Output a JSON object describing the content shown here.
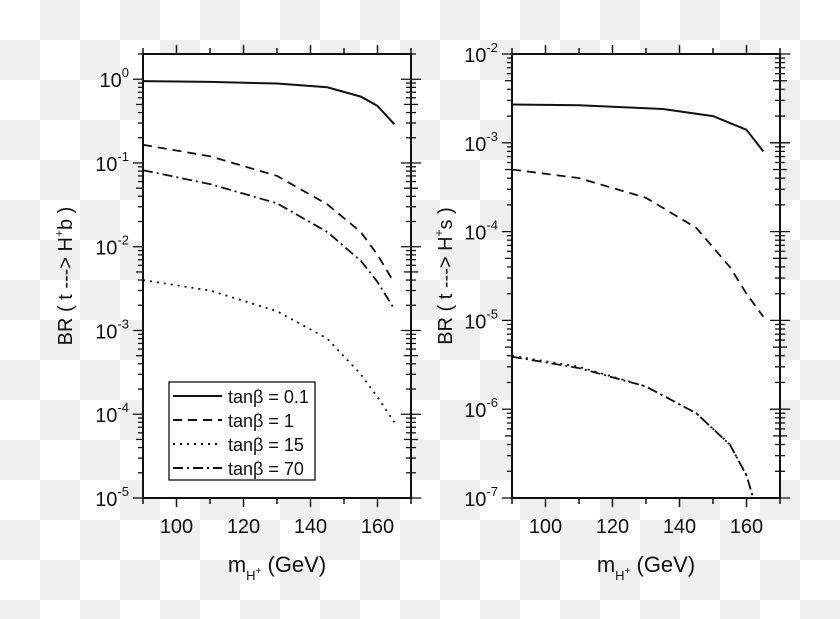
{
  "chart_data": [
    {
      "type": "line",
      "panel": "left",
      "xlabel": {
        "main": "m",
        "sub": "H",
        "subsup": "+",
        "post": " (GeV)"
      },
      "ylabel": {
        "pre": "BR ( t ---> H",
        "sup": "+",
        "post": "b )"
      },
      "xlim": [
        90,
        170
      ],
      "ylim": [
        1e-05,
        2
      ],
      "yscale": "log",
      "x_ticks": [
        100,
        120,
        140,
        160
      ],
      "y_ticks": [
        {
          "base": "10",
          "exp": "0",
          "value": 1
        },
        {
          "base": "10",
          "exp": "-1",
          "value": 0.1
        },
        {
          "base": "10",
          "exp": "-2",
          "value": 0.01
        },
        {
          "base": "10",
          "exp": "-3",
          "value": 0.001
        },
        {
          "base": "10",
          "exp": "-4",
          "value": 0.0001
        },
        {
          "base": "10",
          "exp": "-5",
          "value": 1e-05
        }
      ],
      "legend_placement": "bottom-left",
      "series": [
        {
          "name": "tanβ = 0.1",
          "style": "solid",
          "x": [
            90,
            110,
            130,
            145,
            155,
            160,
            165
          ],
          "y": [
            0.95,
            0.93,
            0.89,
            0.8,
            0.62,
            0.48,
            0.29
          ]
        },
        {
          "name": "tanβ = 1",
          "style": "dashed",
          "x": [
            90,
            110,
            130,
            145,
            155,
            160,
            165
          ],
          "y": [
            0.165,
            0.12,
            0.07,
            0.032,
            0.015,
            0.008,
            0.0037
          ]
        },
        {
          "name": "tanβ = 15",
          "style": "dotted",
          "x": [
            90,
            110,
            130,
            145,
            155,
            160,
            165
          ],
          "y": [
            0.004,
            0.003,
            0.0017,
            0.0008,
            0.0003,
            0.00016,
            8e-05
          ]
        },
        {
          "name": "tanβ = 70",
          "style": "dashdot",
          "x": [
            90,
            110,
            130,
            145,
            155,
            160,
            165
          ],
          "y": [
            0.082,
            0.056,
            0.033,
            0.015,
            0.0068,
            0.0038,
            0.0018
          ]
        }
      ]
    },
    {
      "type": "line",
      "panel": "right",
      "xlabel": {
        "main": "m",
        "sub": "H",
        "subsup": "+",
        "post": " (GeV)"
      },
      "ylabel": {
        "pre": "BR ( t ---> H",
        "sup": "+",
        "post": "s )"
      },
      "xlim": [
        90,
        170
      ],
      "ylim": [
        1e-07,
        0.01
      ],
      "yscale": "log",
      "x_ticks": [
        100,
        120,
        140,
        160
      ],
      "y_ticks": [
        {
          "base": "10",
          "exp": "-2",
          "value": 0.01
        },
        {
          "base": "10",
          "exp": "-3",
          "value": 0.001
        },
        {
          "base": "10",
          "exp": "-4",
          "value": 0.0001
        },
        {
          "base": "10",
          "exp": "-5",
          "value": 1e-05
        },
        {
          "base": "10",
          "exp": "-6",
          "value": 1e-06
        },
        {
          "base": "10",
          "exp": "-7",
          "value": 1e-07
        }
      ],
      "series": [
        {
          "style": "solid",
          "x": [
            90,
            110,
            125,
            135,
            150,
            160,
            165
          ],
          "y": [
            0.0027,
            0.00265,
            0.0025,
            0.0024,
            0.002,
            0.0014,
            0.0008
          ]
        },
        {
          "style": "dashed",
          "x": [
            90,
            110,
            130,
            145,
            155,
            160,
            165
          ],
          "y": [
            0.0005,
            0.0004,
            0.00024,
            0.00011,
            4e-05,
            2e-05,
            1.1e-05
          ]
        },
        {
          "style": "dotted",
          "x": [
            90,
            110,
            130,
            145,
            155,
            160,
            162
          ],
          "y": [
            4e-06,
            3e-06,
            1.8e-06,
            9e-07,
            4e-07,
            1.8e-07,
            1e-07
          ]
        },
        {
          "style": "dashdot",
          "x": [
            90,
            110,
            130,
            145,
            155,
            160,
            162
          ],
          "y": [
            3.9e-06,
            2.9e-06,
            1.8e-06,
            9e-07,
            4e-07,
            1.8e-07,
            1e-07
          ]
        }
      ]
    }
  ]
}
